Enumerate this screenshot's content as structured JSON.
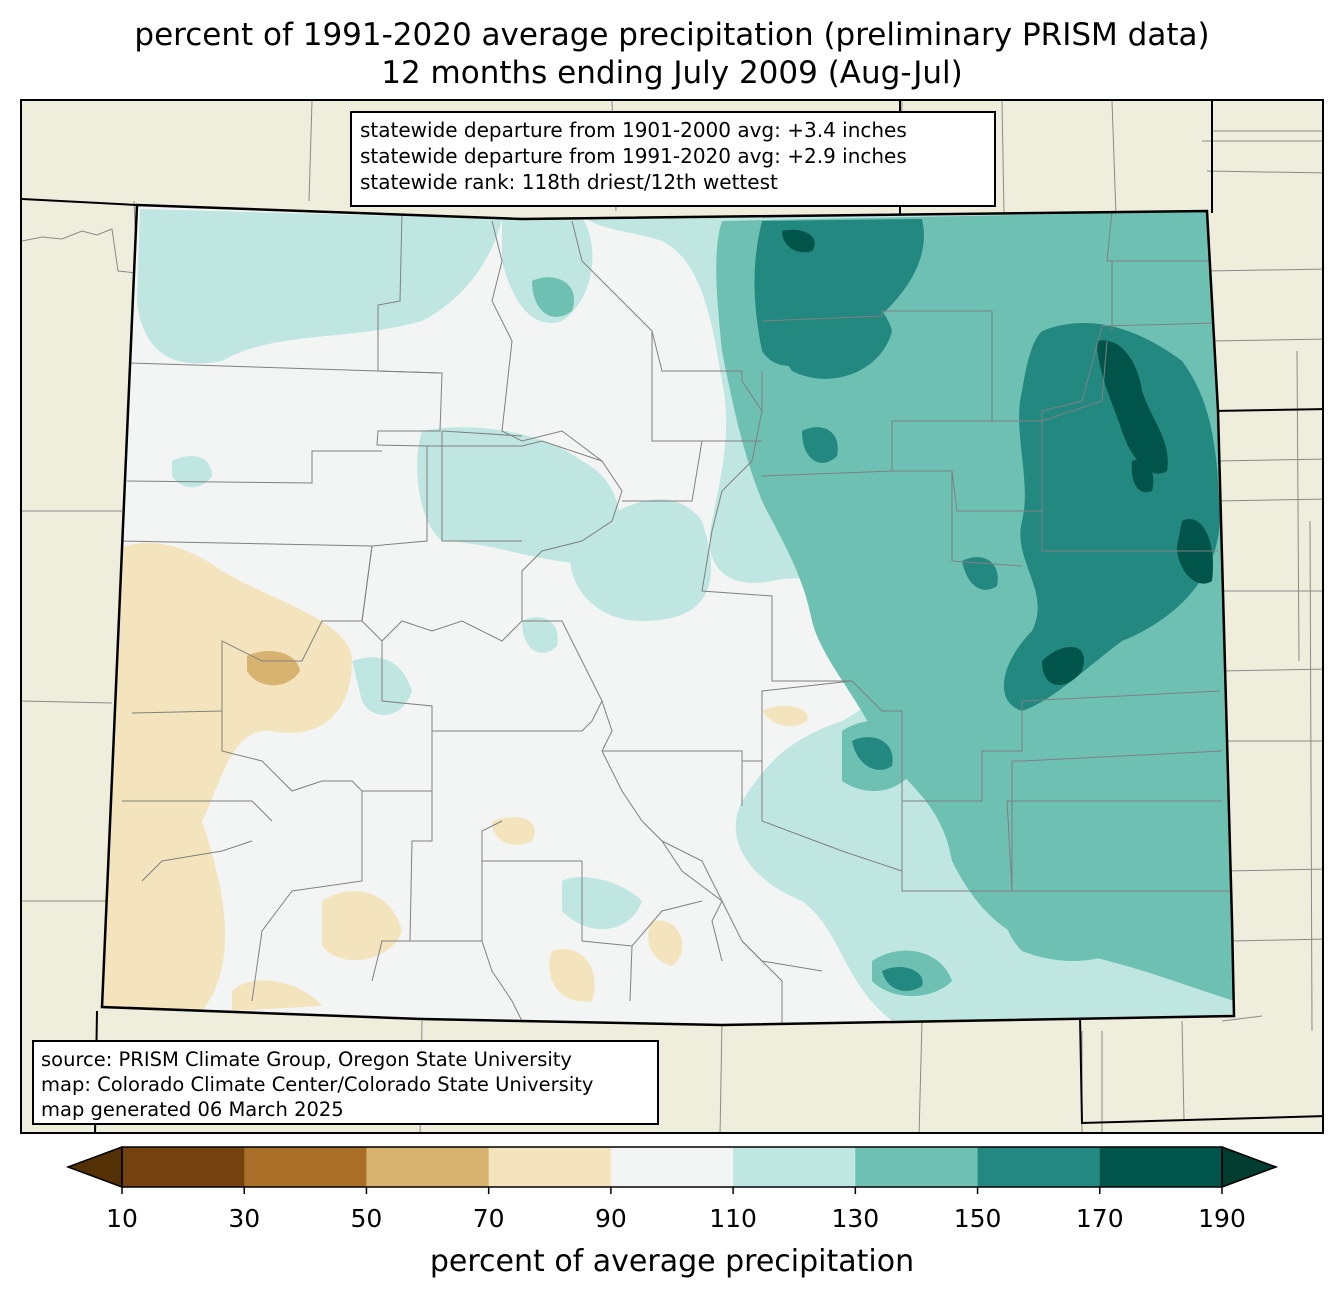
{
  "title": {
    "line1": "percent of 1991-2020 average precipitation (preliminary PRISM data)",
    "line2": "12 months ending July 2009 (Aug-Jul)"
  },
  "stats_box": {
    "lines": [
      "statewide departure from 1901-2000 avg: +3.4 inches",
      "statewide departure from 1991-2020 avg: +2.9 inches",
      "statewide rank: 118th driest/12th wettest"
    ]
  },
  "source_box": {
    "lines": [
      "source: PRISM Climate Group, Oregon State University",
      "map: Colorado Climate Center/Colorado State University",
      "map generated 06 March 2025"
    ]
  },
  "colorbar": {
    "label": "percent of average precipitation",
    "ticks": [
      "10",
      "30",
      "50",
      "70",
      "90",
      "110",
      "130",
      "150",
      "170",
      "190"
    ],
    "colors": [
      "#74420f",
      "#a96e27",
      "#d8b36f",
      "#f3e4bd",
      "#f3f5f4",
      "#bfe6e1",
      "#6ec0b3",
      "#228880",
      "#01544a"
    ],
    "under_color": "#543005",
    "over_color": "#003c30"
  },
  "map": {
    "background_color": "#efeedc",
    "state_fill": "#f3f5f4",
    "county_line_color": "#808080"
  }
}
